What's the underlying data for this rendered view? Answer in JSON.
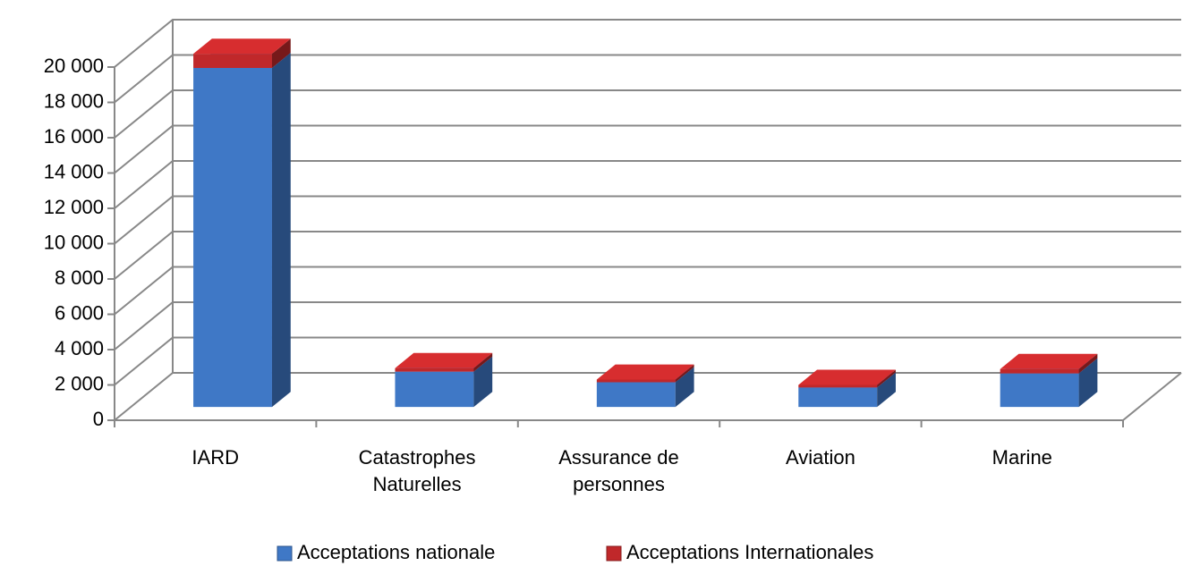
{
  "chart_data": {
    "type": "bar3d_stacked",
    "categories": [
      "IARD",
      "Catastrophes\nNaturelles",
      "Assurance de\npersonnes",
      "Aviation",
      "Marine"
    ],
    "series": [
      {
        "name": "Acceptations nationale",
        "color": "#3f78c6",
        "values": [
          19200,
          2000,
          1400,
          1100,
          1900
        ]
      },
      {
        "name": "Acceptations Internationales",
        "color": "#c0282a",
        "values": [
          800,
          200,
          150,
          150,
          250
        ]
      }
    ],
    "ylim": [
      0,
      20000
    ],
    "yticks": [
      0,
      {
        "value": 2000,
        "label": "2 000"
      },
      {
        "value": 4000,
        "label": "4 000"
      },
      {
        "value": 6000,
        "label": "6 000"
      },
      {
        "value": 8000,
        "label": "8 000"
      },
      {
        "value": 10000,
        "label": "10 000"
      },
      {
        "value": 12000,
        "label": "12 000"
      },
      {
        "value": 14000,
        "label": "14 000"
      },
      {
        "value": 16000,
        "label": "16 000"
      },
      {
        "value": 18000,
        "label": "18 000"
      },
      {
        "value": 20000,
        "label": "20 000"
      }
    ],
    "grid": true,
    "legend": "bottom"
  }
}
